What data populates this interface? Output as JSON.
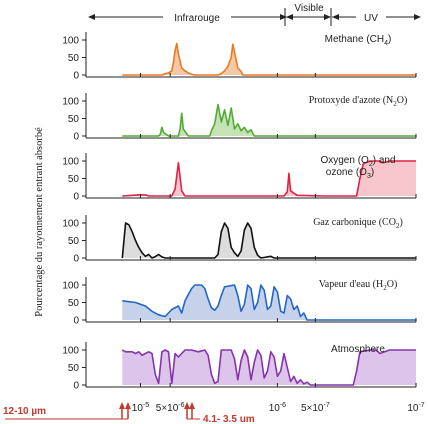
{
  "chart_data": {
    "type": "area",
    "ylabel": "Pourcentage du rayonnement entrant absorbé",
    "regions": [
      {
        "label": "Infrarouge"
      },
      {
        "label": "Visible"
      },
      {
        "label": "UV"
      }
    ],
    "yticks": [
      "0",
      "50",
      "100"
    ],
    "ylim": [
      0,
      110
    ],
    "xlim": [
      -5,
      -7
    ],
    "xscale": "log",
    "xticks": [
      {
        "label": "10",
        "sup": "-5",
        "value": -5
      },
      {
        "label": "5×10",
        "sup": "-6",
        "value": -5.301
      },
      {
        "label": "10",
        "sup": "-6",
        "value": -6
      },
      {
        "label": "5×10",
        "sup": "-7",
        "value": -6.301
      },
      {
        "label": "10",
        "sup": "-7",
        "value": -7
      }
    ],
    "annotations": [
      {
        "text": "12-10 µm",
        "color": "#c0392b"
      },
      {
        "text": "4.1- 3.5 um",
        "color": "#c0392b"
      }
    ],
    "panels": [
      {
        "name": "methane",
        "title": "Methane (CH",
        "sub": "4",
        "after": ")",
        "color": "#ee7722",
        "fill": "#f6c9a6",
        "points": [
          [
            0.11,
            0
          ],
          [
            0.23,
            0
          ],
          [
            0.24,
            4
          ],
          [
            0.25,
            6
          ],
          [
            0.26,
            12
          ],
          [
            0.265,
            35
          ],
          [
            0.27,
            70
          ],
          [
            0.275,
            90
          ],
          [
            0.28,
            60
          ],
          [
            0.29,
            20
          ],
          [
            0.3,
            12
          ],
          [
            0.31,
            6
          ],
          [
            0.32,
            2
          ],
          [
            0.33,
            0
          ],
          [
            0.4,
            0
          ],
          [
            0.41,
            4
          ],
          [
            0.42,
            12
          ],
          [
            0.43,
            25
          ],
          [
            0.44,
            50
          ],
          [
            0.445,
            88
          ],
          [
            0.45,
            65
          ],
          [
            0.46,
            20
          ],
          [
            0.47,
            10
          ],
          [
            0.475,
            0
          ],
          [
            1,
            0
          ]
        ]
      },
      {
        "name": "nitrous-oxide",
        "title": "Protoxyde d'azote (N",
        "sub": "2",
        "after": "O)",
        "color": "#55aa33",
        "fill": "#c6e3b6",
        "points": [
          [
            0.11,
            0
          ],
          [
            0.22,
            0
          ],
          [
            0.225,
            5
          ],
          [
            0.23,
            25
          ],
          [
            0.235,
            10
          ],
          [
            0.25,
            0
          ],
          [
            0.28,
            0
          ],
          [
            0.285,
            20
          ],
          [
            0.29,
            65
          ],
          [
            0.295,
            20
          ],
          [
            0.31,
            0
          ],
          [
            0.375,
            0
          ],
          [
            0.38,
            15
          ],
          [
            0.39,
            35
          ],
          [
            0.4,
            90
          ],
          [
            0.41,
            40
          ],
          [
            0.42,
            75
          ],
          [
            0.43,
            30
          ],
          [
            0.44,
            80
          ],
          [
            0.45,
            20
          ],
          [
            0.46,
            35
          ],
          [
            0.47,
            15
          ],
          [
            0.48,
            25
          ],
          [
            0.49,
            10
          ],
          [
            0.5,
            18
          ],
          [
            0.51,
            0
          ],
          [
            1,
            0
          ]
        ]
      },
      {
        "name": "oxygen-ozone",
        "title": "Oxygen (O",
        "sub": "2",
        "after": ") and",
        "title2": "ozone (O",
        "sub2": "3",
        "after2": ")",
        "color": "#dd2244",
        "fill": "#f6c6cc",
        "points": [
          [
            0.11,
            0
          ],
          [
            0.16,
            3
          ],
          [
            0.18,
            3
          ],
          [
            0.19,
            0
          ],
          [
            0.26,
            0
          ],
          [
            0.27,
            20
          ],
          [
            0.28,
            95
          ],
          [
            0.29,
            15
          ],
          [
            0.3,
            0
          ],
          [
            0.6,
            0
          ],
          [
            0.61,
            12
          ],
          [
            0.615,
            65
          ],
          [
            0.62,
            15
          ],
          [
            0.63,
            8
          ],
          [
            0.64,
            2
          ],
          [
            0.72,
            0
          ],
          [
            0.82,
            0
          ],
          [
            0.83,
            50
          ],
          [
            0.84,
            92
          ],
          [
            0.86,
            100
          ],
          [
            0.89,
            100
          ],
          [
            0.9,
            95
          ],
          [
            0.92,
            100
          ],
          [
            1,
            100
          ]
        ]
      },
      {
        "name": "carbon-dioxide",
        "title": "Gaz carbonique (CO",
        "sub": "2",
        "after": ")",
        "color": "#111111",
        "fill": "#dddddd",
        "points": [
          [
            0.11,
            0
          ],
          [
            0.12,
            100
          ],
          [
            0.13,
            95
          ],
          [
            0.14,
            75
          ],
          [
            0.15,
            50
          ],
          [
            0.16,
            30
          ],
          [
            0.17,
            15
          ],
          [
            0.18,
            5
          ],
          [
            0.19,
            10
          ],
          [
            0.2,
            0
          ],
          [
            0.21,
            4
          ],
          [
            0.22,
            10
          ],
          [
            0.23,
            3
          ],
          [
            0.24,
            0
          ],
          [
            0.39,
            0
          ],
          [
            0.4,
            10
          ],
          [
            0.41,
            75
          ],
          [
            0.42,
            100
          ],
          [
            0.43,
            85
          ],
          [
            0.44,
            30
          ],
          [
            0.45,
            15
          ],
          [
            0.46,
            5
          ],
          [
            0.47,
            20
          ],
          [
            0.48,
            80
          ],
          [
            0.49,
            100
          ],
          [
            0.5,
            85
          ],
          [
            0.51,
            30
          ],
          [
            0.52,
            8
          ],
          [
            0.53,
            0
          ],
          [
            0.56,
            5
          ],
          [
            0.57,
            0
          ],
          [
            1,
            0
          ]
        ]
      },
      {
        "name": "water-vapor",
        "title": "Vapeur d'eau (H",
        "sub": "2",
        "after": "O)",
        "color": "#2266cc",
        "fill": "#c5d2ea",
        "points": [
          [
            0.11,
            55
          ],
          [
            0.15,
            50
          ],
          [
            0.18,
            40
          ],
          [
            0.2,
            25
          ],
          [
            0.22,
            15
          ],
          [
            0.24,
            10
          ],
          [
            0.26,
            30
          ],
          [
            0.28,
            40
          ],
          [
            0.29,
            20
          ],
          [
            0.3,
            55
          ],
          [
            0.32,
            90
          ],
          [
            0.33,
            100
          ],
          [
            0.35,
            100
          ],
          [
            0.36,
            90
          ],
          [
            0.37,
            60
          ],
          [
            0.38,
            35
          ],
          [
            0.39,
            28
          ],
          [
            0.4,
            40
          ],
          [
            0.41,
            70
          ],
          [
            0.42,
            95
          ],
          [
            0.45,
            100
          ],
          [
            0.46,
            70
          ],
          [
            0.47,
            25
          ],
          [
            0.48,
            45
          ],
          [
            0.49,
            100
          ],
          [
            0.5,
            90
          ],
          [
            0.51,
            30
          ],
          [
            0.52,
            50
          ],
          [
            0.53,
            100
          ],
          [
            0.54,
            85
          ],
          [
            0.55,
            30
          ],
          [
            0.56,
            40
          ],
          [
            0.57,
            95
          ],
          [
            0.58,
            80
          ],
          [
            0.59,
            25
          ],
          [
            0.6,
            20
          ],
          [
            0.61,
            70
          ],
          [
            0.62,
            60
          ],
          [
            0.63,
            30
          ],
          [
            0.64,
            40
          ],
          [
            0.65,
            10
          ],
          [
            0.66,
            20
          ],
          [
            0.67,
            0
          ],
          [
            1,
            0
          ]
        ]
      },
      {
        "name": "atmosphere",
        "title": "Atmosphere",
        "sub": "",
        "after": "",
        "color": "#8833aa",
        "fill": "#dcc4ea",
        "points": [
          [
            0.11,
            100
          ],
          [
            0.12,
            95
          ],
          [
            0.14,
            95
          ],
          [
            0.15,
            90
          ],
          [
            0.16,
            95
          ],
          [
            0.17,
            85
          ],
          [
            0.18,
            90
          ],
          [
            0.19,
            95
          ],
          [
            0.2,
            90
          ],
          [
            0.21,
            30
          ],
          [
            0.22,
            5
          ],
          [
            0.23,
            95
          ],
          [
            0.24,
            100
          ],
          [
            0.25,
            95
          ],
          [
            0.26,
            5
          ],
          [
            0.27,
            90
          ],
          [
            0.28,
            80
          ],
          [
            0.29,
            90
          ],
          [
            0.3,
            100
          ],
          [
            0.32,
            100
          ],
          [
            0.34,
            95
          ],
          [
            0.36,
            100
          ],
          [
            0.37,
            85
          ],
          [
            0.38,
            30
          ],
          [
            0.39,
            5
          ],
          [
            0.4,
            10
          ],
          [
            0.41,
            100
          ],
          [
            0.44,
            100
          ],
          [
            0.45,
            75
          ],
          [
            0.46,
            15
          ],
          [
            0.47,
            70
          ],
          [
            0.48,
            100
          ],
          [
            0.49,
            80
          ],
          [
            0.5,
            15
          ],
          [
            0.51,
            65
          ],
          [
            0.52,
            100
          ],
          [
            0.53,
            85
          ],
          [
            0.54,
            20
          ],
          [
            0.55,
            40
          ],
          [
            0.56,
            95
          ],
          [
            0.57,
            80
          ],
          [
            0.58,
            25
          ],
          [
            0.59,
            40
          ],
          [
            0.6,
            90
          ],
          [
            0.61,
            50
          ],
          [
            0.62,
            10
          ],
          [
            0.63,
            25
          ],
          [
            0.64,
            5
          ],
          [
            0.65,
            15
          ],
          [
            0.66,
            3
          ],
          [
            0.67,
            8
          ],
          [
            0.68,
            0
          ],
          [
            0.81,
            0
          ],
          [
            0.82,
            40
          ],
          [
            0.83,
            95
          ],
          [
            0.86,
            100
          ],
          [
            0.88,
            100
          ],
          [
            0.89,
            90
          ],
          [
            0.92,
            100
          ],
          [
            1,
            100
          ]
        ]
      }
    ]
  }
}
